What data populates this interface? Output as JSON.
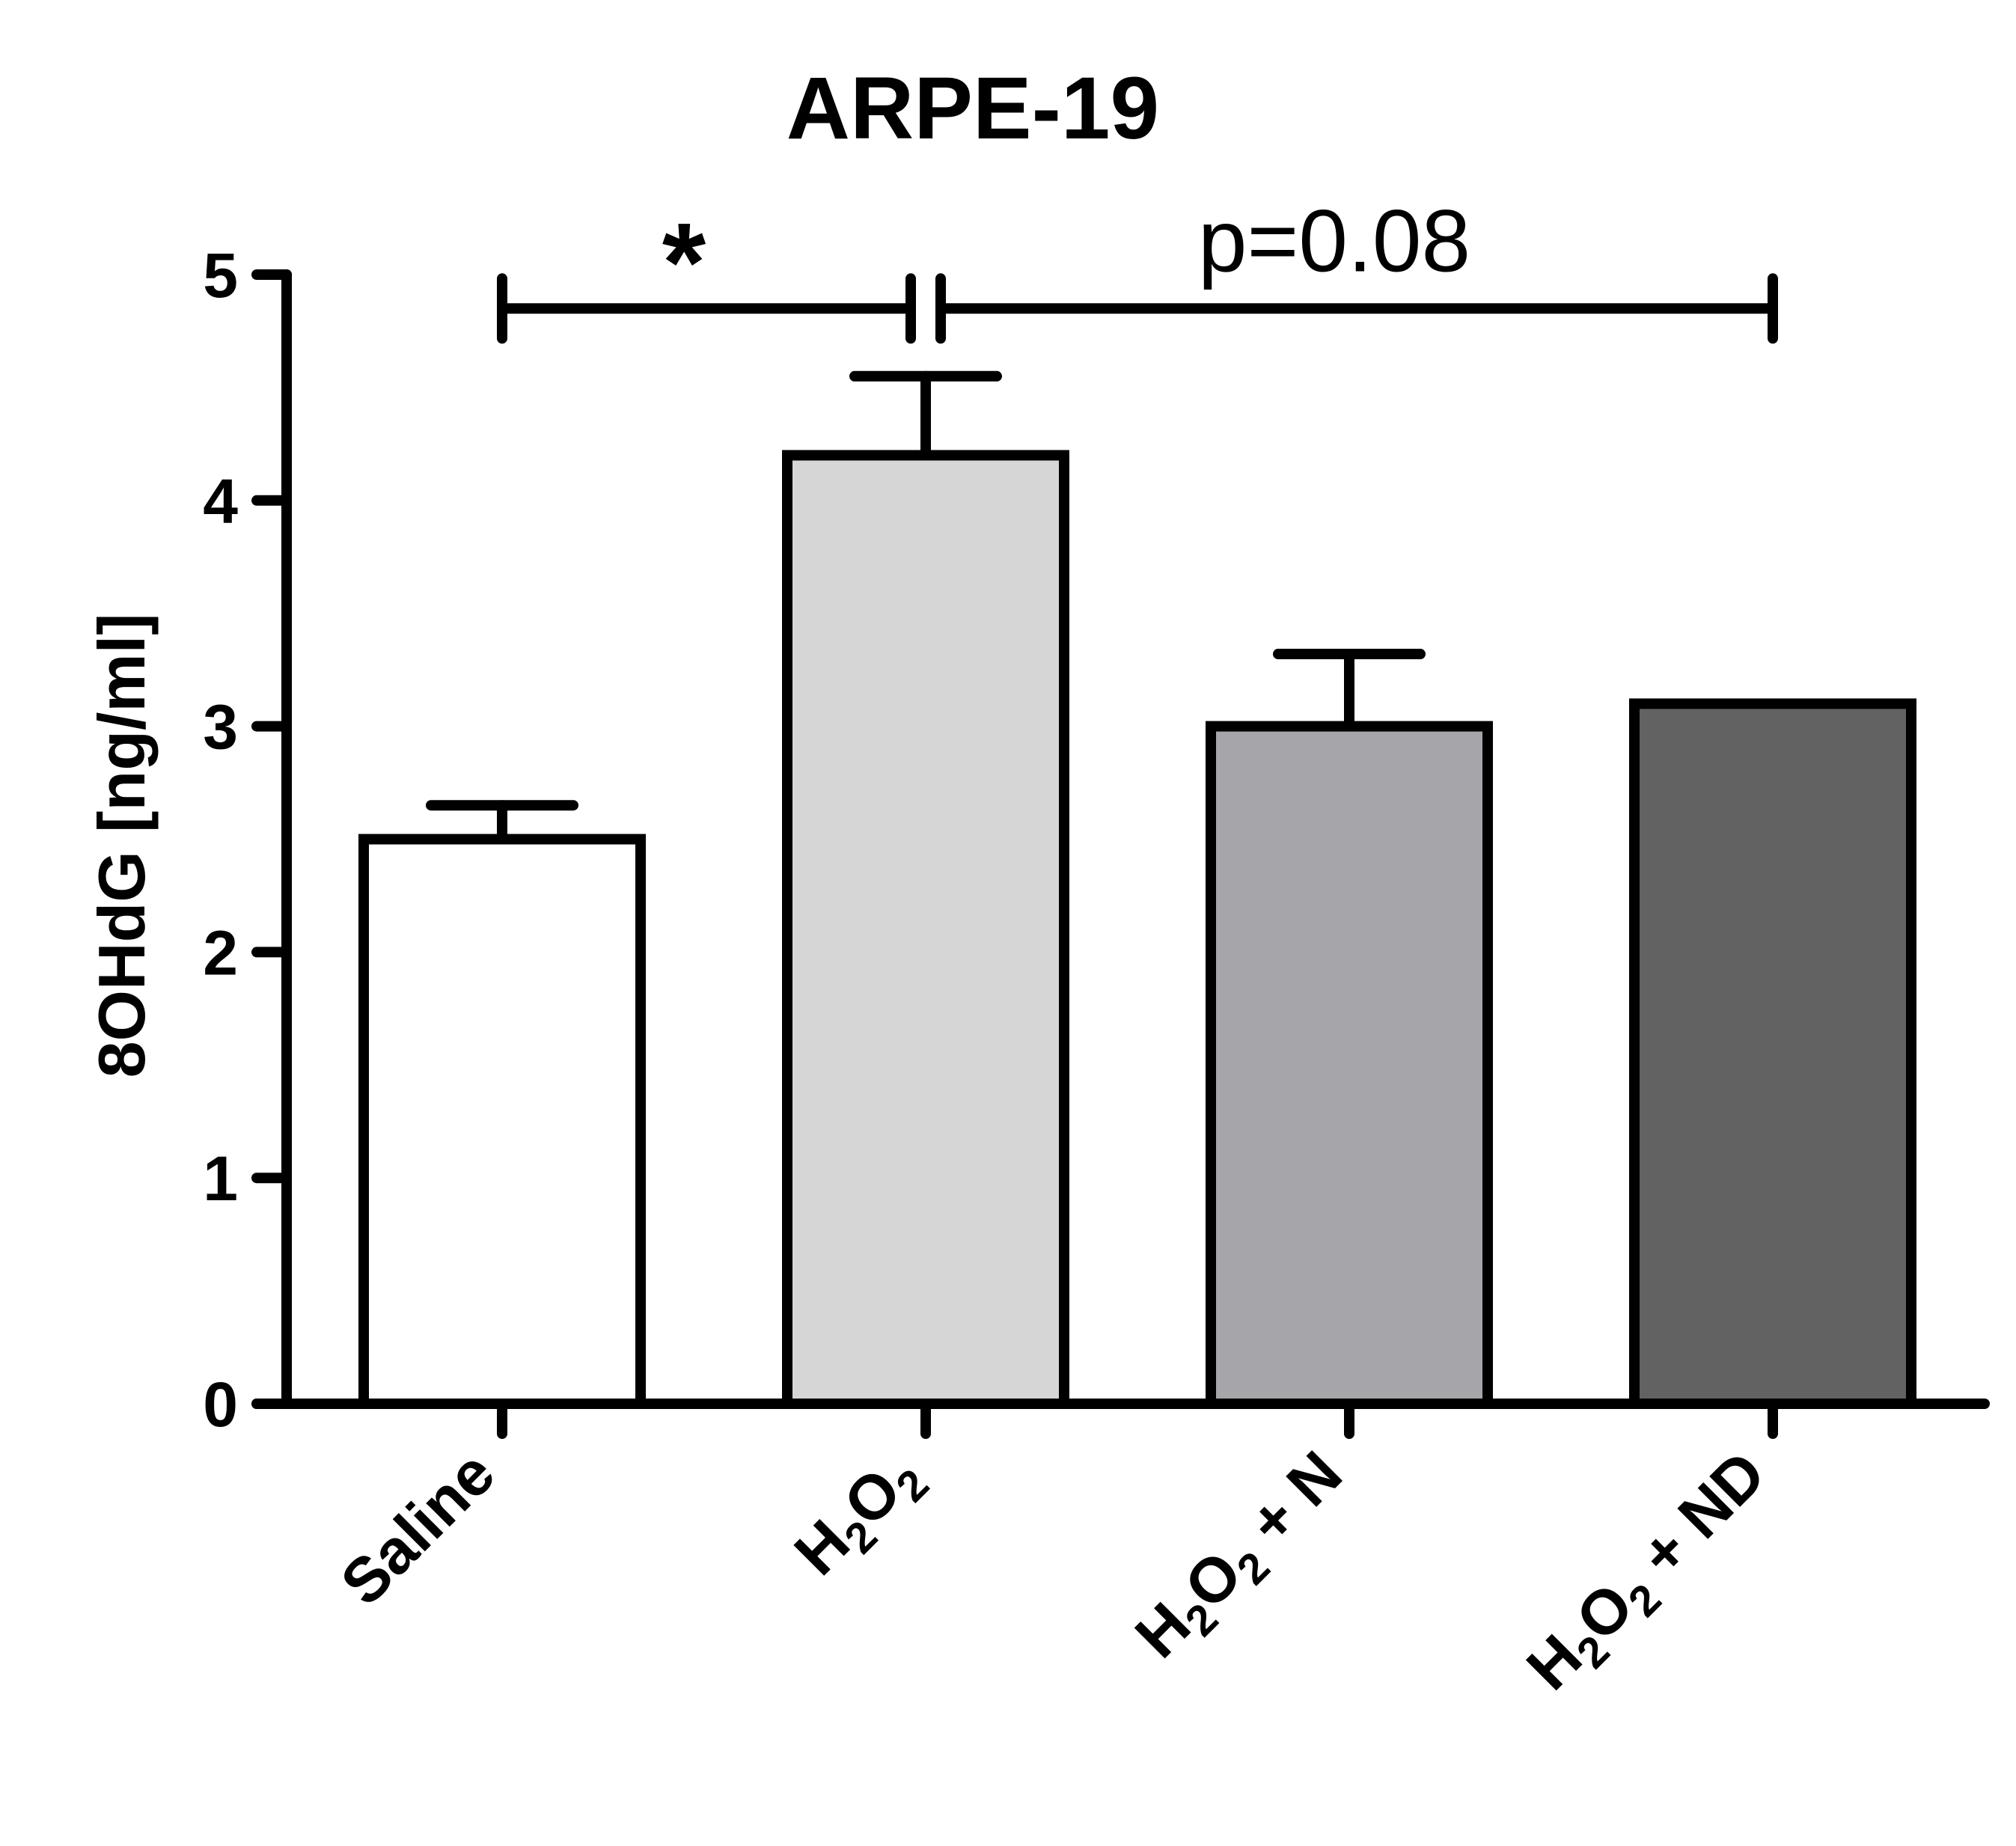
{
  "chart_data": {
    "type": "bar",
    "title": "ARPE-19",
    "ylabel": "8OHdG [ng/ml]",
    "xlabel": "",
    "ylim": [
      0,
      5
    ],
    "yticks": [
      0,
      1,
      2,
      3,
      4,
      5
    ],
    "grid": false,
    "legend": "none",
    "categories": [
      {
        "label": "Saline",
        "parts": [
          {
            "t": "Saline"
          }
        ]
      },
      {
        "label": "H2O2",
        "parts": [
          {
            "t": "H"
          },
          {
            "t": "2",
            "sub": true
          },
          {
            "t": "O"
          },
          {
            "t": "2",
            "sub": true
          }
        ]
      },
      {
        "label": "H2O2 + N",
        "parts": [
          {
            "t": "H"
          },
          {
            "t": "2",
            "sub": true
          },
          {
            "t": "O"
          },
          {
            "t": "2",
            "sub": true
          },
          {
            "t": " + N"
          }
        ]
      },
      {
        "label": "H2O2 + ND",
        "parts": [
          {
            "t": "H"
          },
          {
            "t": "2",
            "sub": true
          },
          {
            "t": "O"
          },
          {
            "t": "2",
            "sub": true
          },
          {
            "t": " + ND"
          }
        ]
      }
    ],
    "values": [
      2.5,
      4.2,
      3.0,
      3.1
    ],
    "error_upper": [
      2.65,
      4.55,
      3.32,
      3.1
    ],
    "bar_colors": [
      "#ffffff",
      "#d6d6d6",
      "#a6a5aa",
      "#626262"
    ],
    "annotations": [
      {
        "text": "*",
        "from": 0,
        "to": 1,
        "level": 4.85
      },
      {
        "text": "p=0.08",
        "from": 1,
        "to": 3,
        "level": 4.85
      }
    ]
  }
}
